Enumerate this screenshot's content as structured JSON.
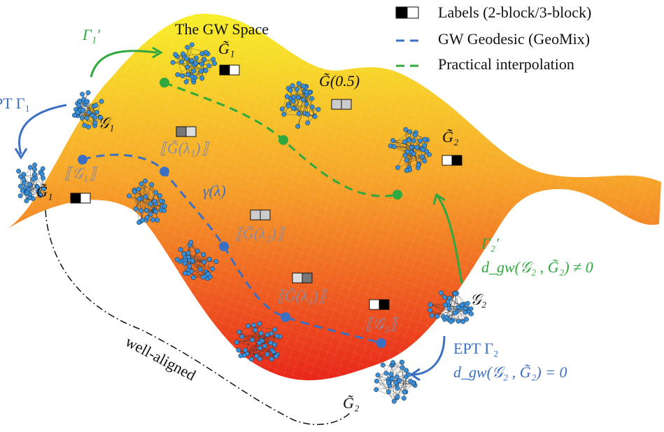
{
  "legend": {
    "items": [
      "Labels (2-block/3-block)",
      "GW Geodesic (GeoMix)",
      "Practical interpolation"
    ]
  },
  "title": "The GW Space",
  "labels": [
    "Γ₁′",
    "PT Γ₁",
    "𝒢₁",
    "G̃₁",
    "G̃₁",
    "⟦𝒢₁⟧",
    "⟦G̃(λ₁)⟧",
    "γ(λ)",
    "⟦G̃(λ₂)⟧",
    "⟦G̃(λ₃)⟧",
    "⟦𝒢₂⟧",
    "G̃(0.5)",
    "G̃₂",
    "Γ₂′",
    "d_gw(𝒢₂ , G̃₂) ≠ 0",
    "𝒢₂",
    "EPT Γ₂",
    "d_gw(𝒢₂ , G̃₂) = 0",
    "G̃₂",
    "well-aligned"
  ]
}
